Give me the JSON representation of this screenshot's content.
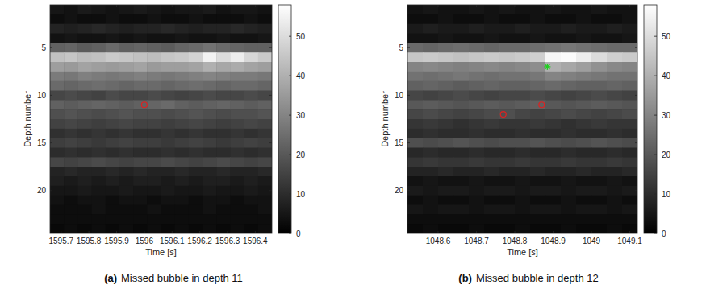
{
  "chart_data": [
    {
      "type": "heatmap",
      "label": "(a)",
      "title": "Missed bubble in depth 11",
      "xlabel": "Time [s]",
      "ylabel": "Depth number",
      "grid": false,
      "xlim": [
        1595.66,
        1596.46
      ],
      "xticks": [
        1595.7,
        1595.8,
        1595.9,
        1596,
        1596.1,
        1596.2,
        1596.3,
        1596.4
      ],
      "ylim": [
        0.5,
        24.5
      ],
      "yticks": [
        5,
        10,
        15,
        20
      ],
      "x": [
        1595.685,
        1595.735,
        1595.785,
        1595.835,
        1595.885,
        1595.935,
        1595.985,
        1596.035,
        1596.085,
        1596.135,
        1596.185,
        1596.235,
        1596.285,
        1596.335,
        1596.385,
        1596.435
      ],
      "y": [
        1,
        2,
        3,
        4,
        5,
        6,
        7,
        8,
        9,
        10,
        11,
        12,
        13,
        14,
        15,
        16,
        17,
        18,
        19,
        20,
        21,
        22,
        23,
        24
      ],
      "cells": [
        [
          5,
          4,
          6,
          5,
          4,
          5,
          6,
          5,
          4,
          5,
          5,
          6,
          4,
          5,
          5,
          4
        ],
        [
          3,
          4,
          3,
          3,
          4,
          3,
          3,
          4,
          3,
          3,
          4,
          3,
          3,
          3,
          4,
          3
        ],
        [
          8,
          7,
          8,
          9,
          8,
          7,
          8,
          8,
          9,
          8,
          7,
          8,
          8,
          9,
          8,
          7
        ],
        [
          4,
          5,
          4,
          4,
          5,
          4,
          5,
          4,
          4,
          5,
          4,
          4,
          5,
          4,
          4,
          5
        ],
        [
          22,
          23,
          21,
          22,
          24,
          22,
          23,
          22,
          21,
          23,
          24,
          26,
          24,
          23,
          22,
          22
        ],
        [
          44,
          45,
          43,
          44,
          46,
          45,
          44,
          43,
          45,
          46,
          48,
          55,
          50,
          54,
          49,
          46
        ],
        [
          36,
          35,
          37,
          36,
          35,
          36,
          37,
          35,
          36,
          36,
          37,
          40,
          38,
          39,
          37,
          36
        ],
        [
          28,
          27,
          29,
          28,
          27,
          28,
          29,
          28,
          27,
          28,
          29,
          30,
          29,
          28,
          28,
          27
        ],
        [
          24,
          23,
          24,
          25,
          24,
          23,
          24,
          24,
          23,
          24,
          25,
          24,
          23,
          24,
          24,
          23
        ],
        [
          16,
          17,
          16,
          15,
          17,
          16,
          16,
          17,
          16,
          15,
          16,
          17,
          16,
          16,
          17,
          16
        ],
        [
          22,
          21,
          22,
          23,
          22,
          21,
          22,
          23,
          24,
          22,
          21,
          22,
          23,
          22,
          21,
          22
        ],
        [
          18,
          19,
          18,
          17,
          18,
          19,
          18,
          18,
          17,
          18,
          19,
          18,
          17,
          18,
          18,
          19
        ],
        [
          15,
          16,
          15,
          14,
          15,
          16,
          15,
          15,
          14,
          15,
          16,
          15,
          14,
          15,
          16,
          15
        ],
        [
          11,
          12,
          11,
          12,
          11,
          12,
          11,
          11,
          12,
          11,
          12,
          11,
          11,
          12,
          11,
          12
        ],
        [
          14,
          15,
          14,
          13,
          14,
          15,
          14,
          14,
          13,
          14,
          15,
          14,
          13,
          14,
          15,
          14
        ],
        [
          10,
          11,
          10,
          11,
          10,
          11,
          10,
          10,
          11,
          10,
          11,
          10,
          10,
          11,
          10,
          11
        ],
        [
          16,
          15,
          16,
          17,
          16,
          15,
          16,
          16,
          17,
          16,
          15,
          16,
          17,
          16,
          15,
          16
        ],
        [
          8,
          9,
          8,
          8,
          9,
          8,
          9,
          8,
          8,
          9,
          8,
          8,
          9,
          8,
          8,
          9
        ],
        [
          7,
          6,
          7,
          6,
          7,
          6,
          7,
          7,
          6,
          7,
          6,
          7,
          7,
          6,
          7,
          6
        ],
        [
          5,
          5,
          6,
          5,
          5,
          6,
          5,
          5,
          6,
          5,
          5,
          6,
          5,
          5,
          6,
          5
        ],
        [
          4,
          3,
          4,
          4,
          3,
          4,
          4,
          3,
          4,
          4,
          3,
          4,
          4,
          3,
          4,
          4
        ],
        [
          3,
          3,
          3,
          4,
          3,
          3,
          3,
          4,
          3,
          3,
          3,
          4,
          3,
          3,
          3,
          4
        ],
        [
          3,
          3,
          3,
          3,
          3,
          3,
          3,
          3,
          3,
          3,
          3,
          3,
          3,
          3,
          3,
          3
        ],
        [
          2,
          3,
          2,
          3,
          2,
          3,
          2,
          3,
          2,
          3,
          2,
          3,
          2,
          3,
          2,
          3
        ]
      ],
      "color_range": [
        0,
        58
      ],
      "color_ticks": [
        0,
        10,
        20,
        30,
        40,
        50
      ],
      "series": [
        {
          "type": "scatter",
          "color": "#e02020",
          "marker": "circle",
          "x": [
            1596.0
          ],
          "y": [
            11
          ]
        }
      ]
    },
    {
      "type": "heatmap",
      "label": "(b)",
      "title": "Missed bubble in depth 12",
      "xlabel": "Time [s]",
      "ylabel": "Depth number",
      "grid": false,
      "xlim": [
        1048.52,
        1049.12
      ],
      "xticks": [
        1048.6,
        1048.7,
        1048.8,
        1048.9,
        1049,
        1049.1
      ],
      "ylim": [
        0.5,
        24.5
      ],
      "yticks": [
        5,
        10,
        15,
        20
      ],
      "x": [
        1048.54,
        1048.58,
        1048.62,
        1048.66,
        1048.7,
        1048.74,
        1048.78,
        1048.82,
        1048.86,
        1048.9,
        1048.94,
        1048.98,
        1049.02,
        1049.06,
        1049.1
      ],
      "y": [
        1,
        2,
        3,
        4,
        5,
        6,
        7,
        8,
        9,
        10,
        11,
        12,
        13,
        14,
        15,
        16,
        17,
        18,
        19,
        20,
        21,
        22,
        23,
        24
      ],
      "cells": [
        [
          4,
          5,
          4,
          4,
          5,
          4,
          5,
          4,
          4,
          5,
          4,
          4,
          5,
          4,
          4
        ],
        [
          3,
          3,
          4,
          3,
          3,
          4,
          3,
          3,
          4,
          3,
          3,
          4,
          3,
          3,
          4
        ],
        [
          6,
          7,
          6,
          6,
          7,
          6,
          6,
          7,
          6,
          6,
          7,
          6,
          6,
          7,
          6
        ],
        [
          4,
          4,
          5,
          4,
          4,
          5,
          4,
          4,
          5,
          4,
          4,
          5,
          4,
          4,
          5
        ],
        [
          24,
          23,
          24,
          25,
          24,
          23,
          24,
          24,
          25,
          26,
          27,
          26,
          25,
          24,
          24
        ],
        [
          45,
          46,
          45,
          44,
          45,
          46,
          45,
          46,
          47,
          56,
          57,
          54,
          50,
          47,
          46
        ],
        [
          30,
          31,
          30,
          29,
          30,
          31,
          30,
          31,
          32,
          40,
          38,
          36,
          33,
          31,
          30
        ],
        [
          26,
          25,
          26,
          27,
          26,
          25,
          26,
          26,
          27,
          30,
          29,
          28,
          27,
          26,
          26
        ],
        [
          22,
          23,
          22,
          21,
          22,
          23,
          22,
          22,
          23,
          24,
          23,
          22,
          22,
          23,
          22
        ],
        [
          16,
          15,
          16,
          17,
          16,
          15,
          16,
          16,
          17,
          16,
          15,
          16,
          17,
          16,
          15
        ],
        [
          20,
          21,
          20,
          19,
          20,
          21,
          20,
          21,
          22,
          20,
          19,
          20,
          21,
          20,
          19
        ],
        [
          16,
          17,
          16,
          15,
          16,
          17,
          18,
          16,
          15,
          16,
          17,
          16,
          15,
          16,
          17
        ],
        [
          12,
          13,
          12,
          11,
          12,
          13,
          12,
          12,
          13,
          12,
          11,
          12,
          13,
          12,
          12
        ],
        [
          10,
          11,
          10,
          10,
          11,
          10,
          10,
          11,
          10,
          10,
          11,
          10,
          10,
          11,
          10
        ],
        [
          18,
          17,
          18,
          19,
          18,
          17,
          18,
          18,
          19,
          18,
          17,
          18,
          19,
          18,
          17
        ],
        [
          9,
          10,
          9,
          9,
          10,
          9,
          9,
          10,
          9,
          9,
          10,
          9,
          9,
          10,
          9
        ],
        [
          12,
          13,
          12,
          12,
          13,
          12,
          12,
          13,
          12,
          12,
          13,
          12,
          12,
          13,
          12
        ],
        [
          8,
          8,
          9,
          8,
          8,
          9,
          8,
          8,
          9,
          8,
          8,
          9,
          8,
          8,
          9
        ],
        [
          4,
          5,
          4,
          4,
          5,
          4,
          4,
          5,
          4,
          4,
          5,
          4,
          4,
          5,
          4
        ],
        [
          6,
          5,
          6,
          6,
          5,
          6,
          6,
          5,
          6,
          6,
          5,
          6,
          6,
          5,
          6
        ],
        [
          3,
          4,
          3,
          3,
          4,
          3,
          3,
          4,
          3,
          3,
          4,
          3,
          3,
          4,
          3
        ],
        [
          5,
          4,
          5,
          5,
          4,
          5,
          5,
          4,
          5,
          5,
          4,
          5,
          5,
          4,
          5
        ],
        [
          3,
          3,
          3,
          3,
          3,
          3,
          3,
          3,
          3,
          3,
          3,
          3,
          3,
          3,
          3
        ],
        [
          2,
          3,
          2,
          2,
          3,
          2,
          2,
          3,
          2,
          2,
          3,
          2,
          2,
          3,
          2
        ]
      ],
      "color_range": [
        0,
        58
      ],
      "color_ticks": [
        0,
        10,
        20,
        30,
        40,
        50
      ],
      "series": [
        {
          "type": "scatter",
          "color": "#e02020",
          "marker": "circle",
          "x": [
            1048.77,
            1048.87
          ],
          "y": [
            12,
            11
          ]
        },
        {
          "type": "scatter",
          "color": "#20d020",
          "marker": "star",
          "x": [
            1048.885
          ],
          "y": [
            7
          ]
        }
      ]
    }
  ]
}
